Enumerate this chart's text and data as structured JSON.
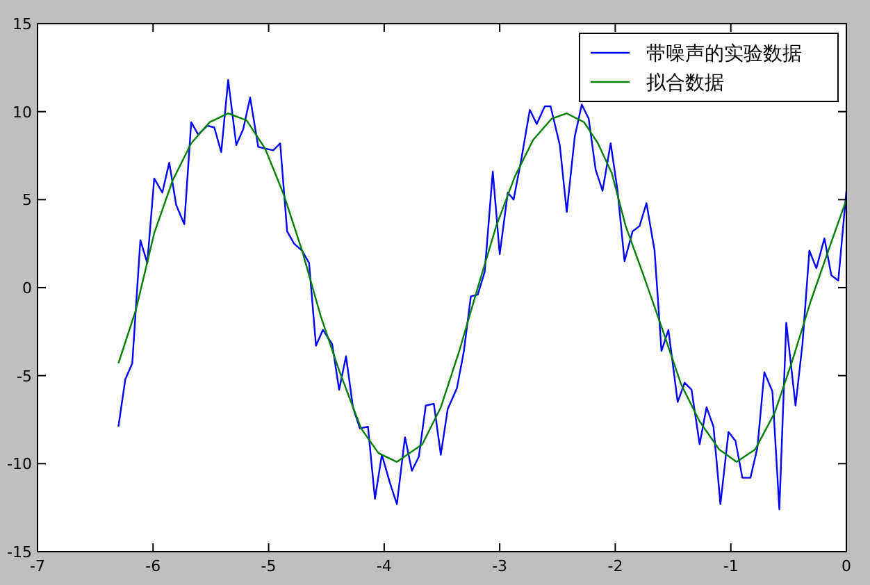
{
  "chart_data": {
    "type": "line",
    "xlim": [
      -7,
      0
    ],
    "ylim": [
      -15,
      15
    ],
    "xticks": [
      -7,
      -6,
      -5,
      -4,
      -3,
      -2,
      -1,
      0
    ],
    "yticks": [
      -15,
      -10,
      -5,
      0,
      5,
      10,
      15
    ],
    "grid": false,
    "legend": "top right",
    "series": [
      {
        "name": "带噪声的实验数据",
        "color": "#0000ff",
        "x": [
          -6.3,
          -6.24,
          -6.18,
          -6.11,
          -6.05,
          -5.99,
          -5.92,
          -5.86,
          -5.8,
          -5.73,
          -5.67,
          -5.61,
          -5.53,
          -5.47,
          -5.41,
          -5.35,
          -5.28,
          -5.22,
          -5.16,
          -5.09,
          -5.03,
          -4.96,
          -4.9,
          -4.84,
          -4.78,
          -4.71,
          -4.65,
          -4.59,
          -4.53,
          -4.45,
          -4.39,
          -4.33,
          -4.27,
          -4.21,
          -4.14,
          -4.08,
          -4.02,
          -3.95,
          -3.89,
          -3.82,
          -3.76,
          -3.7,
          -3.64,
          -3.57,
          -3.51,
          -3.45,
          -3.37,
          -3.31,
          -3.25,
          -3.19,
          -3.13,
          -3.06,
          -3.0,
          -2.93,
          -2.88,
          -2.81,
          -2.74,
          -2.68,
          -2.61,
          -2.56,
          -2.48,
          -2.42,
          -2.35,
          -2.29,
          -2.23,
          -2.17,
          -2.11,
          -2.04,
          -1.98,
          -1.92,
          -1.85,
          -1.79,
          -1.73,
          -1.66,
          -1.6,
          -1.54,
          -1.46,
          -1.4,
          -1.34,
          -1.27,
          -1.21,
          -1.15,
          -1.09,
          -1.02,
          -0.96,
          -0.9,
          -0.83,
          -0.77,
          -0.71,
          -0.64,
          -0.58,
          -0.52,
          -0.44,
          -0.38,
          -0.32,
          -0.26,
          -0.19,
          -0.13,
          -0.07,
          0
        ],
        "values": [
          -7.9,
          -5.2,
          -4.3,
          2.7,
          1.4,
          6.2,
          5.4,
          7.1,
          4.7,
          3.6,
          9.4,
          8.7,
          9.2,
          9.1,
          7.7,
          11.8,
          8.1,
          9.0,
          10.8,
          8.0,
          7.9,
          7.8,
          8.2,
          3.2,
          2.5,
          2.1,
          1.4,
          -3.3,
          -2.4,
          -3.2,
          -5.8,
          -3.9,
          -6.8,
          -8.0,
          -7.9,
          -12.0,
          -9.5,
          -11.1,
          -12.3,
          -8.5,
          -10.4,
          -9.6,
          -6.7,
          -6.6,
          -9.5,
          -6.9,
          -5.7,
          -3.6,
          -0.5,
          -0.4,
          0.9,
          6.6,
          1.9,
          5.4,
          5.0,
          7.4,
          10.1,
          9.3,
          10.3,
          10.3,
          8.1,
          4.3,
          8.6,
          10.4,
          9.6,
          6.7,
          5.5,
          8.2,
          5.5,
          1.5,
          3.2,
          3.5,
          4.8,
          2.1,
          -3.6,
          -2.4,
          -6.5,
          -5.4,
          -5.8,
          -8.9,
          -6.8,
          -7.9,
          -12.3,
          -8.2,
          -8.7,
          -10.8,
          -10.8,
          -9.1,
          -4.8,
          -5.9,
          -12.6,
          -2.0,
          -6.7,
          -3.2,
          2.1,
          1.1,
          2.8,
          0.7,
          0.4,
          5.5
        ]
      },
      {
        "name": "拟合数据",
        "color": "#008000",
        "x": [
          -6.3,
          -6.15,
          -5.99,
          -5.83,
          -5.67,
          -5.51,
          -5.35,
          -5.19,
          -5.03,
          -4.87,
          -4.71,
          -4.55,
          -4.39,
          -4.2,
          -4.05,
          -3.89,
          -3.67,
          -3.51,
          -3.35,
          -3.19,
          -3.03,
          -2.87,
          -2.71,
          -2.55,
          -2.42,
          -2.27,
          -2.15,
          -2.03,
          -1.91,
          -1.75,
          -1.58,
          -1.43,
          -1.27,
          -1.1,
          -0.95,
          -0.79,
          -0.62,
          -0.47,
          -0.31,
          -0.14,
          0
        ],
        "values": [
          -4.3,
          -1.3,
          3.1,
          6.1,
          8.2,
          9.4,
          9.9,
          9.5,
          7.9,
          5.3,
          2.1,
          -1.6,
          -4.7,
          -8.0,
          -9.4,
          -9.9,
          -8.9,
          -6.8,
          -3.6,
          0,
          3.5,
          6.3,
          8.4,
          9.6,
          9.9,
          9.4,
          8.2,
          6.5,
          3.5,
          0.6,
          -2.6,
          -5.5,
          -7.6,
          -9.2,
          -9.9,
          -9.2,
          -7.1,
          -4.2,
          -0.8,
          2.4,
          5.0
        ]
      }
    ]
  }
}
